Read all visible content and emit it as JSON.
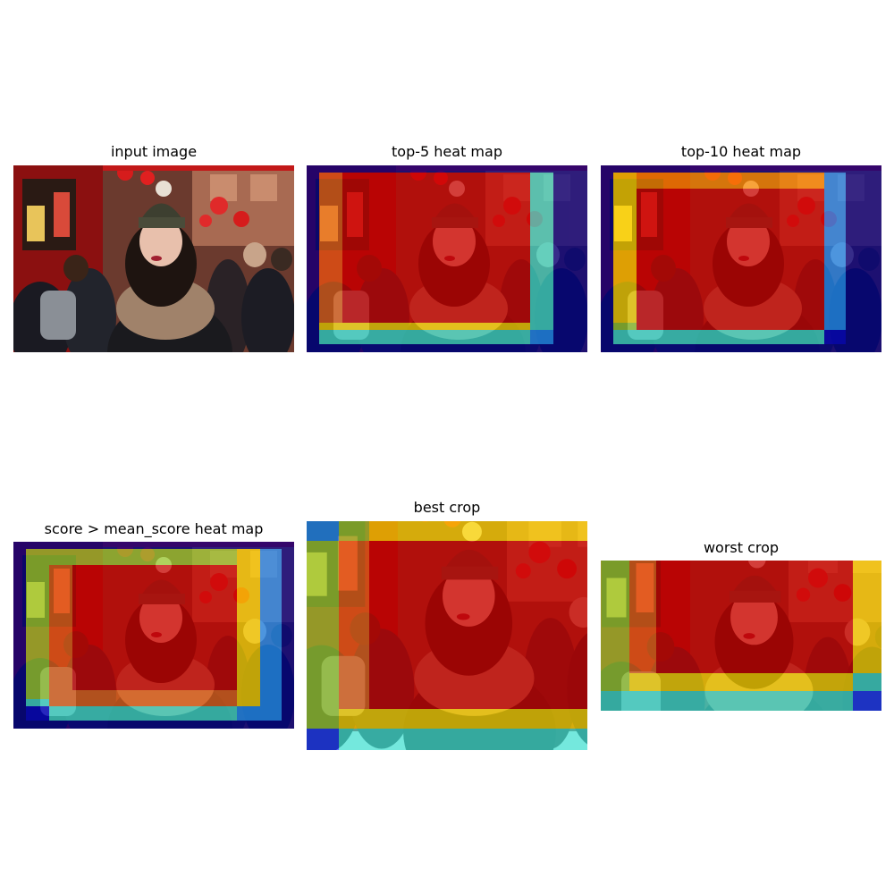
{
  "figure": {
    "panels": [
      {
        "key": "input",
        "title": "input image"
      },
      {
        "key": "top5",
        "title": "top-5 heat map"
      },
      {
        "key": "top10",
        "title": "top-10 heat map"
      },
      {
        "key": "mean",
        "title": "score > mean_score heat map"
      },
      {
        "key": "best",
        "title": "best crop"
      },
      {
        "key": "worst",
        "title": "worst crop"
      }
    ],
    "colors": {
      "heat_low": "#00008b",
      "heat_mid_low": "#1e90ff",
      "heat_mid": "#40e0d0",
      "heat_mid_high": "#ffd700",
      "heat_high": "#cc0000",
      "lantern_red": "#cc1a1a"
    }
  }
}
